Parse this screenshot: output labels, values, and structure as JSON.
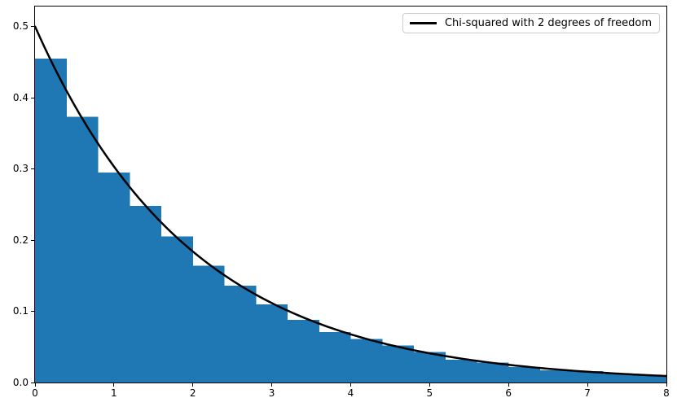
{
  "chart_data": {
    "type": "bar",
    "subtype": "histogram-with-line-overlay",
    "title": "",
    "xlabel": "",
    "ylabel": "",
    "xlim": [
      0,
      8
    ],
    "ylim": [
      0,
      0.528
    ],
    "grid": false,
    "x_ticks": [
      0,
      1,
      2,
      3,
      4,
      5,
      6,
      7,
      8
    ],
    "x_tick_labels": [
      "0",
      "1",
      "2",
      "3",
      "4",
      "5",
      "6",
      "7",
      "8"
    ],
    "y_ticks": [
      0.0,
      0.1,
      0.2,
      0.3,
      0.4,
      0.5
    ],
    "y_tick_labels": [
      "0.0",
      "0.1",
      "0.2",
      "0.3",
      "0.4",
      "0.5"
    ],
    "histogram": {
      "color": "#1f77b4",
      "bin_width": 0.4,
      "bin_edges": [
        0.0,
        0.4,
        0.8,
        1.2,
        1.6,
        2.0,
        2.4,
        2.8,
        3.2,
        3.6,
        4.0,
        4.4,
        4.8,
        5.2,
        5.6,
        6.0,
        6.4,
        6.8,
        7.2,
        7.6,
        8.0
      ],
      "densities": [
        0.455,
        0.373,
        0.295,
        0.248,
        0.205,
        0.164,
        0.136,
        0.11,
        0.088,
        0.071,
        0.061,
        0.052,
        0.043,
        0.032,
        0.028,
        0.022,
        0.017,
        0.016,
        0.012,
        0.01
      ]
    },
    "curve": {
      "label": "Chi-squared with 2 degrees of freedom",
      "color": "#000000",
      "line_width": 2.5,
      "formula": "y = 0.5 * exp(-x / 2)",
      "amplitude": 0.5,
      "decay_rate": 0.5,
      "x_range": [
        0,
        8
      ]
    },
    "legend": {
      "position": "upper right",
      "entries": [
        {
          "label": "Chi-squared with 2 degrees of freedom",
          "color": "#000000",
          "style": "line"
        }
      ]
    }
  }
}
